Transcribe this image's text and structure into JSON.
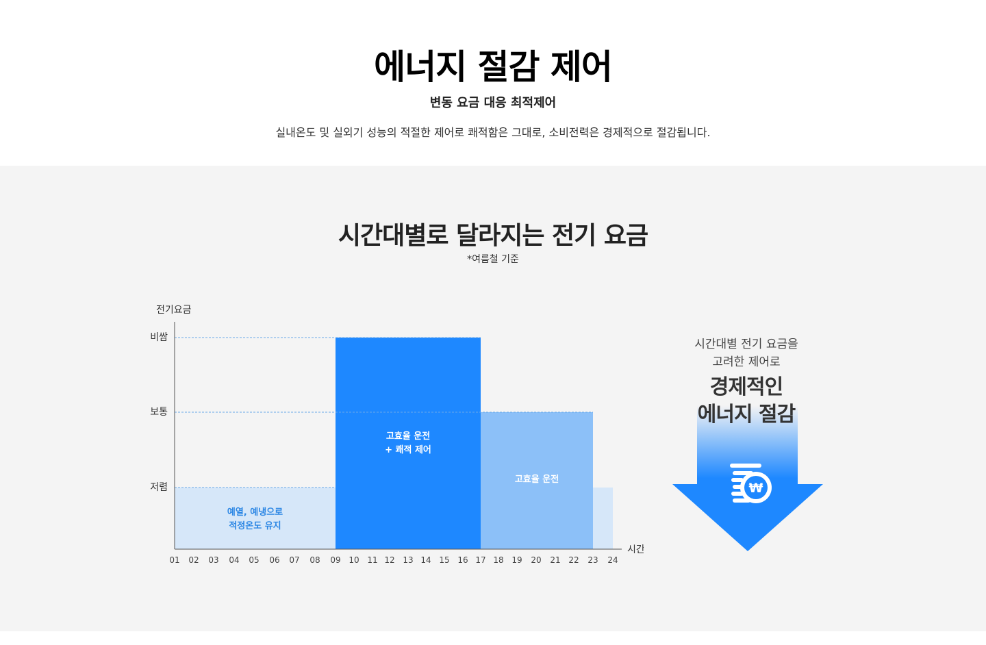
{
  "header": {
    "title": "에너지 절감 제어",
    "subtitle": "변동 요금 대응 최적제어",
    "description": "실내온도 및 실외기 성능의 적절한 제어로 쾌적함은 그대로, 소비전력은 경제적으로 절감됩니다."
  },
  "section": {
    "title": "시간대별로 달라지는 전기 요금",
    "note": "*여름철 기준"
  },
  "side": {
    "line1": "시간대별 전기 요금을",
    "line2": "고려한 제어로",
    "emph1": "경제적인",
    "emph2": "에너지 절감",
    "icon": "won-coin-icon"
  },
  "colors": {
    "accent": "#1e88ff",
    "mid": "#8cc0f8",
    "light": "#d6e7f9",
    "light_text": "#2b86e4",
    "dashed": "#69a9e8"
  },
  "chart_data": {
    "type": "bar",
    "ylabel": "전기요금",
    "xlabel": "시간",
    "levels": [
      "저렴",
      "보통",
      "비쌈"
    ],
    "level_values": [
      1,
      2,
      3
    ],
    "ylim": [
      0,
      3
    ],
    "x": [
      "01",
      "02",
      "03",
      "04",
      "05",
      "06",
      "07",
      "08",
      "09",
      "10",
      "11",
      "12",
      "13",
      "14",
      "15",
      "16",
      "17",
      "18",
      "19",
      "20",
      "21",
      "22",
      "23",
      "24"
    ],
    "values": [
      1,
      1,
      1,
      1,
      1,
      1,
      1,
      1,
      3,
      3,
      3,
      3,
      3,
      3,
      3,
      3,
      2,
      2,
      2,
      2,
      2,
      2,
      1,
      1
    ],
    "segments": [
      {
        "from": "01",
        "to": "09",
        "level": 1,
        "label_lines": [
          "예열, 예냉으로",
          "적정온도 유지"
        ],
        "style": "light"
      },
      {
        "from": "09",
        "to": "17",
        "level": 3,
        "label_lines": [
          "고효율 운전",
          "+ 쾌적 제어"
        ],
        "style": "accent"
      },
      {
        "from": "17",
        "to": "23",
        "level": 2,
        "label_lines": [
          "고효율 운전"
        ],
        "style": "mid"
      },
      {
        "from": "23",
        "to": "24",
        "level": 1,
        "label_lines": [],
        "style": "light"
      }
    ]
  }
}
